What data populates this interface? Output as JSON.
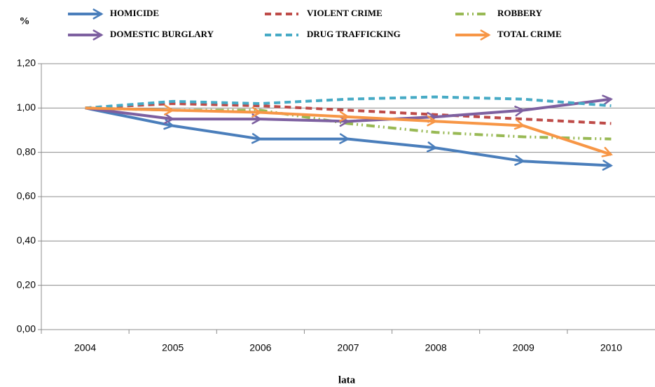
{
  "chart_data": {
    "type": "line",
    "ylabel": "%",
    "xlabel": "lata",
    "categories": [
      "2004",
      "2005",
      "2006",
      "2007",
      "2008",
      "2009",
      "2010"
    ],
    "ylim": [
      0,
      1.2
    ],
    "yticks": [
      {
        "value": 0,
        "label": "0,00"
      },
      {
        "value": 0.2,
        "label": "0,20"
      },
      {
        "value": 0.4,
        "label": "0,40"
      },
      {
        "value": 0.6,
        "label": "0,60"
      },
      {
        "value": 0.8,
        "label": "0,80"
      },
      {
        "value": 1.0,
        "label": "1,00"
      },
      {
        "value": 1.2,
        "label": "1,20"
      }
    ],
    "grid": true,
    "legend": "top",
    "series": [
      {
        "name": "HOMICIDE",
        "color": "#4a7ebb",
        "style": "arrow",
        "values": [
          1.0,
          0.92,
          0.86,
          0.86,
          0.82,
          0.76,
          0.74
        ]
      },
      {
        "name": "VIOLENT CRIME",
        "color": "#be4b48",
        "style": "dashed",
        "values": [
          1.0,
          1.02,
          1.01,
          0.99,
          0.97,
          0.95,
          0.93
        ]
      },
      {
        "name": "ROBBERY",
        "color": "#98b954",
        "style": "dashdot",
        "values": [
          1.0,
          0.99,
          0.99,
          0.93,
          0.89,
          0.87,
          0.86
        ]
      },
      {
        "name": "DOMESTIC BURGLARY",
        "color": "#7d60a0",
        "style": "arrow",
        "values": [
          1.0,
          0.95,
          0.95,
          0.94,
          0.96,
          0.99,
          1.04
        ]
      },
      {
        "name": "DRUG TRAFFICKING",
        "color": "#46aac5",
        "style": "dashed",
        "values": [
          1.0,
          1.03,
          1.02,
          1.04,
          1.05,
          1.04,
          1.01
        ]
      },
      {
        "name": "TOTAL CRIME",
        "color": "#f79646",
        "style": "arrow",
        "values": [
          1.0,
          0.99,
          0.98,
          0.96,
          0.94,
          0.92,
          0.79
        ]
      }
    ]
  }
}
